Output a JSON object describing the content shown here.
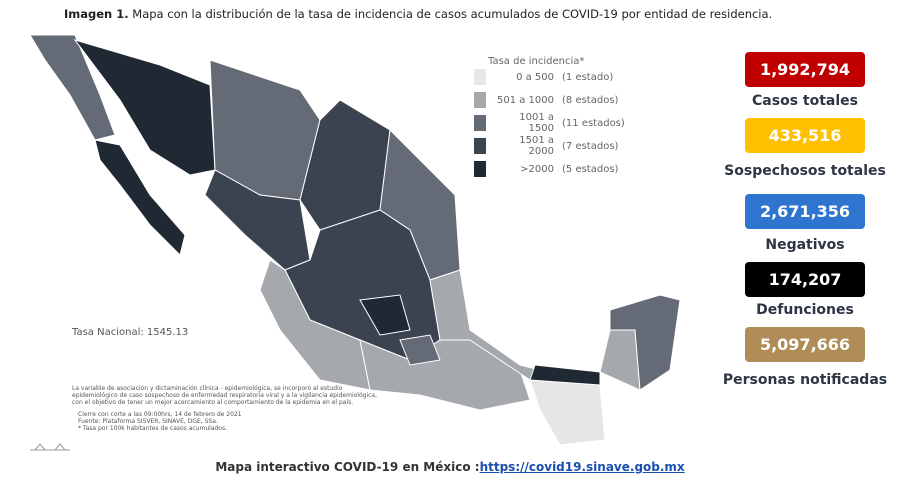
{
  "header": {
    "label": "Imagen 1.",
    "title": "Mapa con la distribución de la tasa de incidencia de casos acumulados de COVID-19 por entidad de residencia."
  },
  "legend": {
    "title": "Tasa de incidencia*",
    "entries": [
      {
        "range": "0 a 500",
        "count": "(1 estado)",
        "color": "#e6e6e6"
      },
      {
        "range": "501 a 1000",
        "count": "(8 estados)",
        "color": "#a5a8ad"
      },
      {
        "range": "1001 a 1500",
        "count": "(11 estados)",
        "color": "#656b76"
      },
      {
        "range": "1501 a 2000",
        "count": "(7 estados)",
        "color": "#3b4350"
      },
      {
        "range": ">2000",
        "count": "(5 estados)",
        "color": "#1f2833"
      }
    ]
  },
  "national_rate": "Tasa Nacional: 1545.13",
  "notes": [
    "La variable de asociación y dictaminación clínica - epidemiológica, se incorporó al estudio",
    "epidemiológico de caso sospechoso de enfermedad respiratoria viral y a la vigilancia epidemiológica,",
    "con el objetivo de tener un mejor acercamiento al comportamiento de la epidemia en el país."
  ],
  "sources": [
    "Cierre con corte a las 09:00hrs, 14 de febrero de 2021",
    "Fuente: Plataforma SISVER, SINAVE, DGE, SSa.",
    "* Tasa por 100k habitantes de casos acumulados."
  ],
  "stats": [
    {
      "value": "1,992,794",
      "label": "Casos totales",
      "color": "#c00000"
    },
    {
      "value": "433,516",
      "label": "Sospechosos totales",
      "color": "#ffc000"
    },
    {
      "value": "2,671,356",
      "label": "Negativos",
      "color": "#2f75cf"
    },
    {
      "value": "174,207",
      "label": "Defunciones",
      "color": "#000000"
    },
    {
      "value": "5,097,666",
      "label": "Personas notificadas",
      "color": "#b08d57"
    }
  ],
  "footer": {
    "text": "Mapa interactivo COVID-19 en México :",
    "link": "https://covid19.sinave.gob.mx"
  }
}
